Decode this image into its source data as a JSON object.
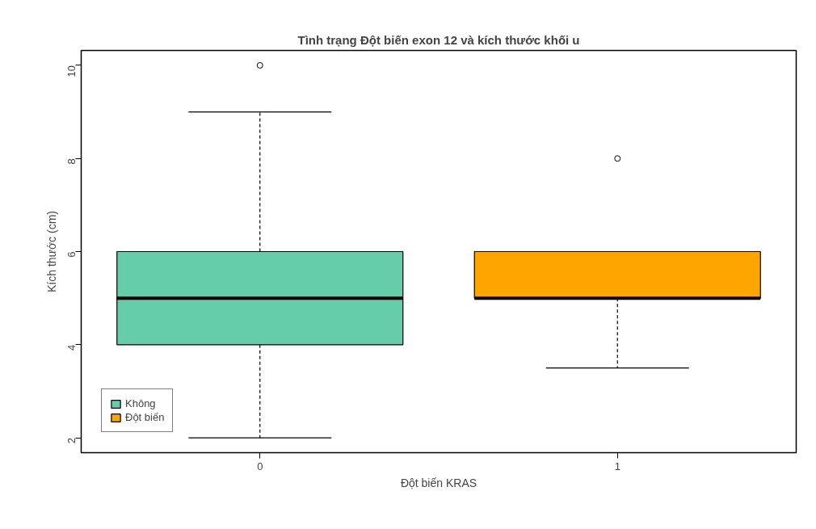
{
  "chart_data": {
    "type": "box",
    "title": "Tình trạng Đột biến exon 12 và kích thước khối u",
    "xlabel": "Đột biến KRAS",
    "ylabel": "Kích thước (cm)",
    "categories": [
      "0",
      "1"
    ],
    "series": [
      {
        "name": "Không",
        "color": "#66cdaa",
        "boxes": [
          {
            "low": 2,
            "q1": 4,
            "median": 5,
            "q3": 6,
            "high": 9,
            "outliers": [
              10
            ]
          },
          null
        ]
      },
      {
        "name": "Đột biến",
        "color": "#ffa500",
        "boxes": [
          null,
          {
            "low": 3.5,
            "q1": 5,
            "median": 5,
            "q3": 6,
            "high": 6,
            "outliers": [
              8
            ]
          }
        ]
      }
    ],
    "ylim": [
      1.68,
      10.32
    ],
    "yticks": [
      2,
      4,
      6,
      8,
      10
    ],
    "grid": false,
    "legend": "bottom left"
  }
}
